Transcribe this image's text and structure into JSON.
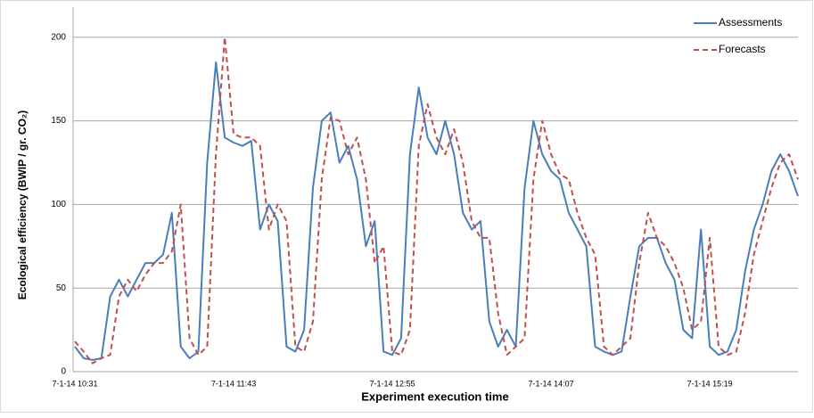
{
  "chart_data": {
    "type": "line",
    "x_label": "Experiment execution time",
    "y_label": "Ecological efficiency (BWIP / gr. CO₂)",
    "categories": [
      "7-1-14 10:31",
      null,
      null,
      null,
      null,
      null,
      null,
      null,
      null,
      null,
      null,
      null,
      null,
      null,
      null,
      null,
      null,
      null,
      "7-1-14 11:43",
      null,
      null,
      null,
      null,
      null,
      null,
      null,
      null,
      null,
      null,
      null,
      null,
      null,
      null,
      null,
      null,
      null,
      "7-1-14 12:55",
      null,
      null,
      null,
      null,
      null,
      null,
      null,
      null,
      null,
      null,
      null,
      null,
      null,
      null,
      null,
      null,
      null,
      "7-1-14 14:07",
      null,
      null,
      null,
      null,
      null,
      null,
      null,
      null,
      null,
      null,
      null,
      null,
      null,
      null,
      null,
      null,
      null,
      "7-1-14 15:19",
      null,
      null,
      null,
      null,
      null,
      null,
      null,
      null,
      null,
      null
    ],
    "series": [
      {
        "name": "Assessments",
        "color": "#4a7ebb",
        "dash": false,
        "values": [
          15,
          8,
          7,
          8,
          45,
          55,
          45,
          55,
          65,
          65,
          70,
          95,
          15,
          8,
          12,
          125,
          185,
          140,
          137,
          135,
          138,
          85,
          100,
          90,
          15,
          12,
          25,
          110,
          150,
          155,
          125,
          135,
          115,
          75,
          90,
          12,
          10,
          20,
          130,
          170,
          140,
          130,
          150,
          130,
          95,
          85,
          90,
          30,
          15,
          25,
          15,
          110,
          150,
          130,
          120,
          115,
          95,
          85,
          75,
          15,
          12,
          10,
          12,
          45,
          75,
          80,
          80,
          65,
          55,
          25,
          20,
          85,
          15,
          10,
          12,
          25,
          60,
          85,
          100,
          120,
          130,
          120,
          105
        ]
      },
      {
        "name": "Forecasts",
        "color": "#c0504d",
        "dash": true,
        "values": [
          18,
          12,
          5,
          8,
          10,
          45,
          55,
          48,
          58,
          65,
          65,
          72,
          100,
          20,
          10,
          15,
          130,
          200,
          142,
          140,
          140,
          135,
          85,
          100,
          90,
          15,
          12,
          30,
          115,
          152,
          150,
          130,
          140,
          115,
          65,
          75,
          12,
          10,
          25,
          135,
          160,
          140,
          130,
          145,
          125,
          90,
          80,
          80,
          35,
          10,
          15,
          20,
          115,
          150,
          130,
          118,
          115,
          95,
          80,
          70,
          15,
          10,
          15,
          20,
          65,
          95,
          80,
          75,
          65,
          50,
          25,
          30,
          80,
          15,
          10,
          12,
          35,
          70,
          90,
          110,
          125,
          130,
          115
        ]
      }
    ],
    "ylim": [
      0,
      218
    ],
    "yticks": [
      0,
      50,
      100,
      150,
      200
    ],
    "grid": true,
    "legend": "top-right"
  }
}
